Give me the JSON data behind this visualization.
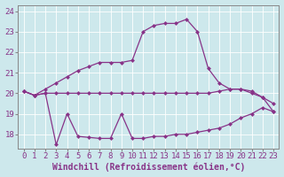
{
  "xlabel": "Windchill (Refroidissement éolien,°C)",
  "background_color": "#cde8ec",
  "line_color": "#883388",
  "grid_color": "#b8d8dc",
  "xlim": [
    -0.5,
    23.5
  ],
  "ylim": [
    17.3,
    24.3
  ],
  "xticks": [
    0,
    1,
    2,
    3,
    4,
    5,
    6,
    7,
    8,
    9,
    10,
    11,
    12,
    13,
    14,
    15,
    16,
    17,
    18,
    19,
    20,
    21,
    22,
    23
  ],
  "yticks": [
    18,
    19,
    20,
    21,
    22,
    23,
    24
  ],
  "curve_temp_x": [
    0,
    1,
    2,
    3,
    4,
    5,
    6,
    7,
    8,
    9,
    10,
    11,
    12,
    13,
    14,
    15,
    16,
    17,
    18,
    19,
    20,
    21,
    22,
    23
  ],
  "curve_temp_y": [
    20.1,
    19.9,
    20.2,
    20.5,
    20.8,
    21.1,
    21.3,
    21.5,
    21.5,
    21.5,
    21.6,
    23.0,
    23.3,
    23.4,
    23.4,
    23.6,
    23.0,
    21.2,
    20.5,
    20.2,
    20.2,
    20.0,
    19.8,
    19.5
  ],
  "curve_flat_x": [
    0,
    1,
    2,
    3,
    4,
    5,
    6,
    7,
    8,
    9,
    10,
    11,
    12,
    13,
    14,
    15,
    16,
    17,
    18,
    19,
    20,
    21,
    22,
    23
  ],
  "curve_flat_y": [
    20.1,
    19.9,
    20.0,
    20.0,
    20.0,
    20.0,
    20.0,
    20.0,
    20.0,
    20.0,
    20.0,
    20.0,
    20.0,
    20.0,
    20.0,
    20.0,
    20.0,
    20.0,
    20.1,
    20.2,
    20.2,
    20.1,
    19.8,
    19.1
  ],
  "curve_wc_x": [
    0,
    1,
    2,
    3,
    4,
    5,
    6,
    7,
    8,
    9,
    10,
    11,
    12,
    13,
    14,
    15,
    16,
    17,
    18,
    19,
    20,
    21,
    22,
    23
  ],
  "curve_wc_y": [
    20.1,
    19.9,
    20.0,
    17.5,
    19.0,
    17.9,
    17.85,
    17.8,
    17.8,
    19.0,
    17.8,
    17.8,
    17.9,
    17.9,
    18.0,
    18.0,
    18.1,
    18.2,
    18.3,
    18.5,
    18.8,
    19.0,
    19.3,
    19.1
  ],
  "font_size_ticks": 6.5,
  "font_size_label": 7.0
}
